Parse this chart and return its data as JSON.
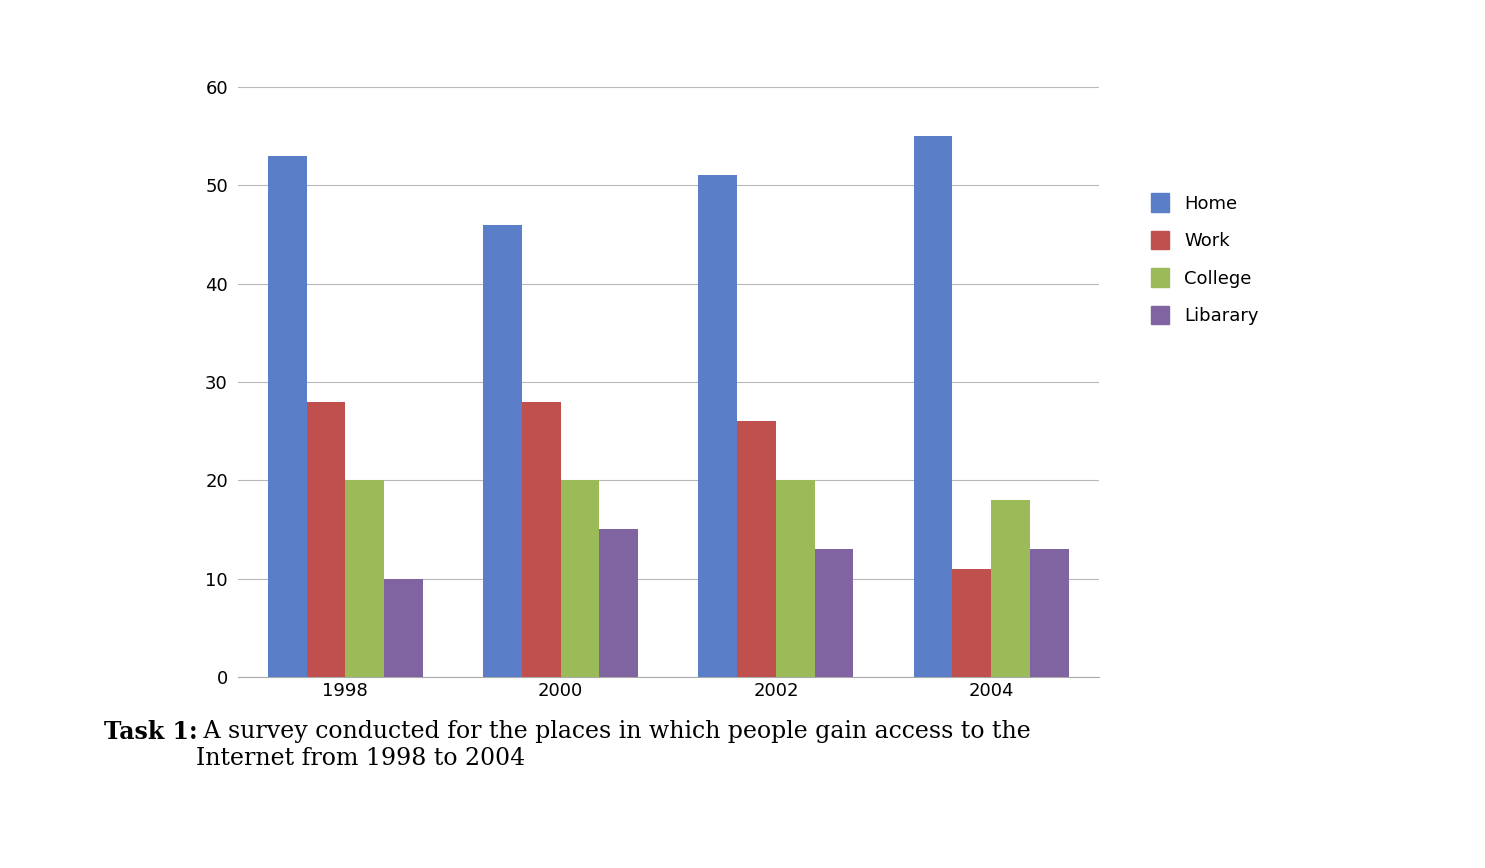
{
  "years": [
    "1998",
    "2000",
    "2002",
    "2004"
  ],
  "series": {
    "Home": [
      53,
      46,
      51,
      55
    ],
    "Work": [
      28,
      28,
      26,
      11
    ],
    "College": [
      20,
      20,
      20,
      18
    ],
    "Libarary": [
      10,
      15,
      13,
      13
    ]
  },
  "colors": {
    "Home": "#5B7EC9",
    "Work": "#C0504D",
    "College": "#9BBB59",
    "Libarary": "#8064A2"
  },
  "ylim": [
    0,
    60
  ],
  "yticks": [
    0,
    10,
    20,
    30,
    40,
    50,
    60
  ],
  "caption_bold": "Task 1:",
  "caption_normal": " A survey conducted for the places in which people gain access to the\nInternet from 1998 to 2004",
  "background_color": "#ffffff",
  "grid_color": "#b8b8b8",
  "bar_width": 0.18,
  "legend_fontsize": 13,
  "tick_fontsize": 13,
  "caption_fontsize": 17
}
